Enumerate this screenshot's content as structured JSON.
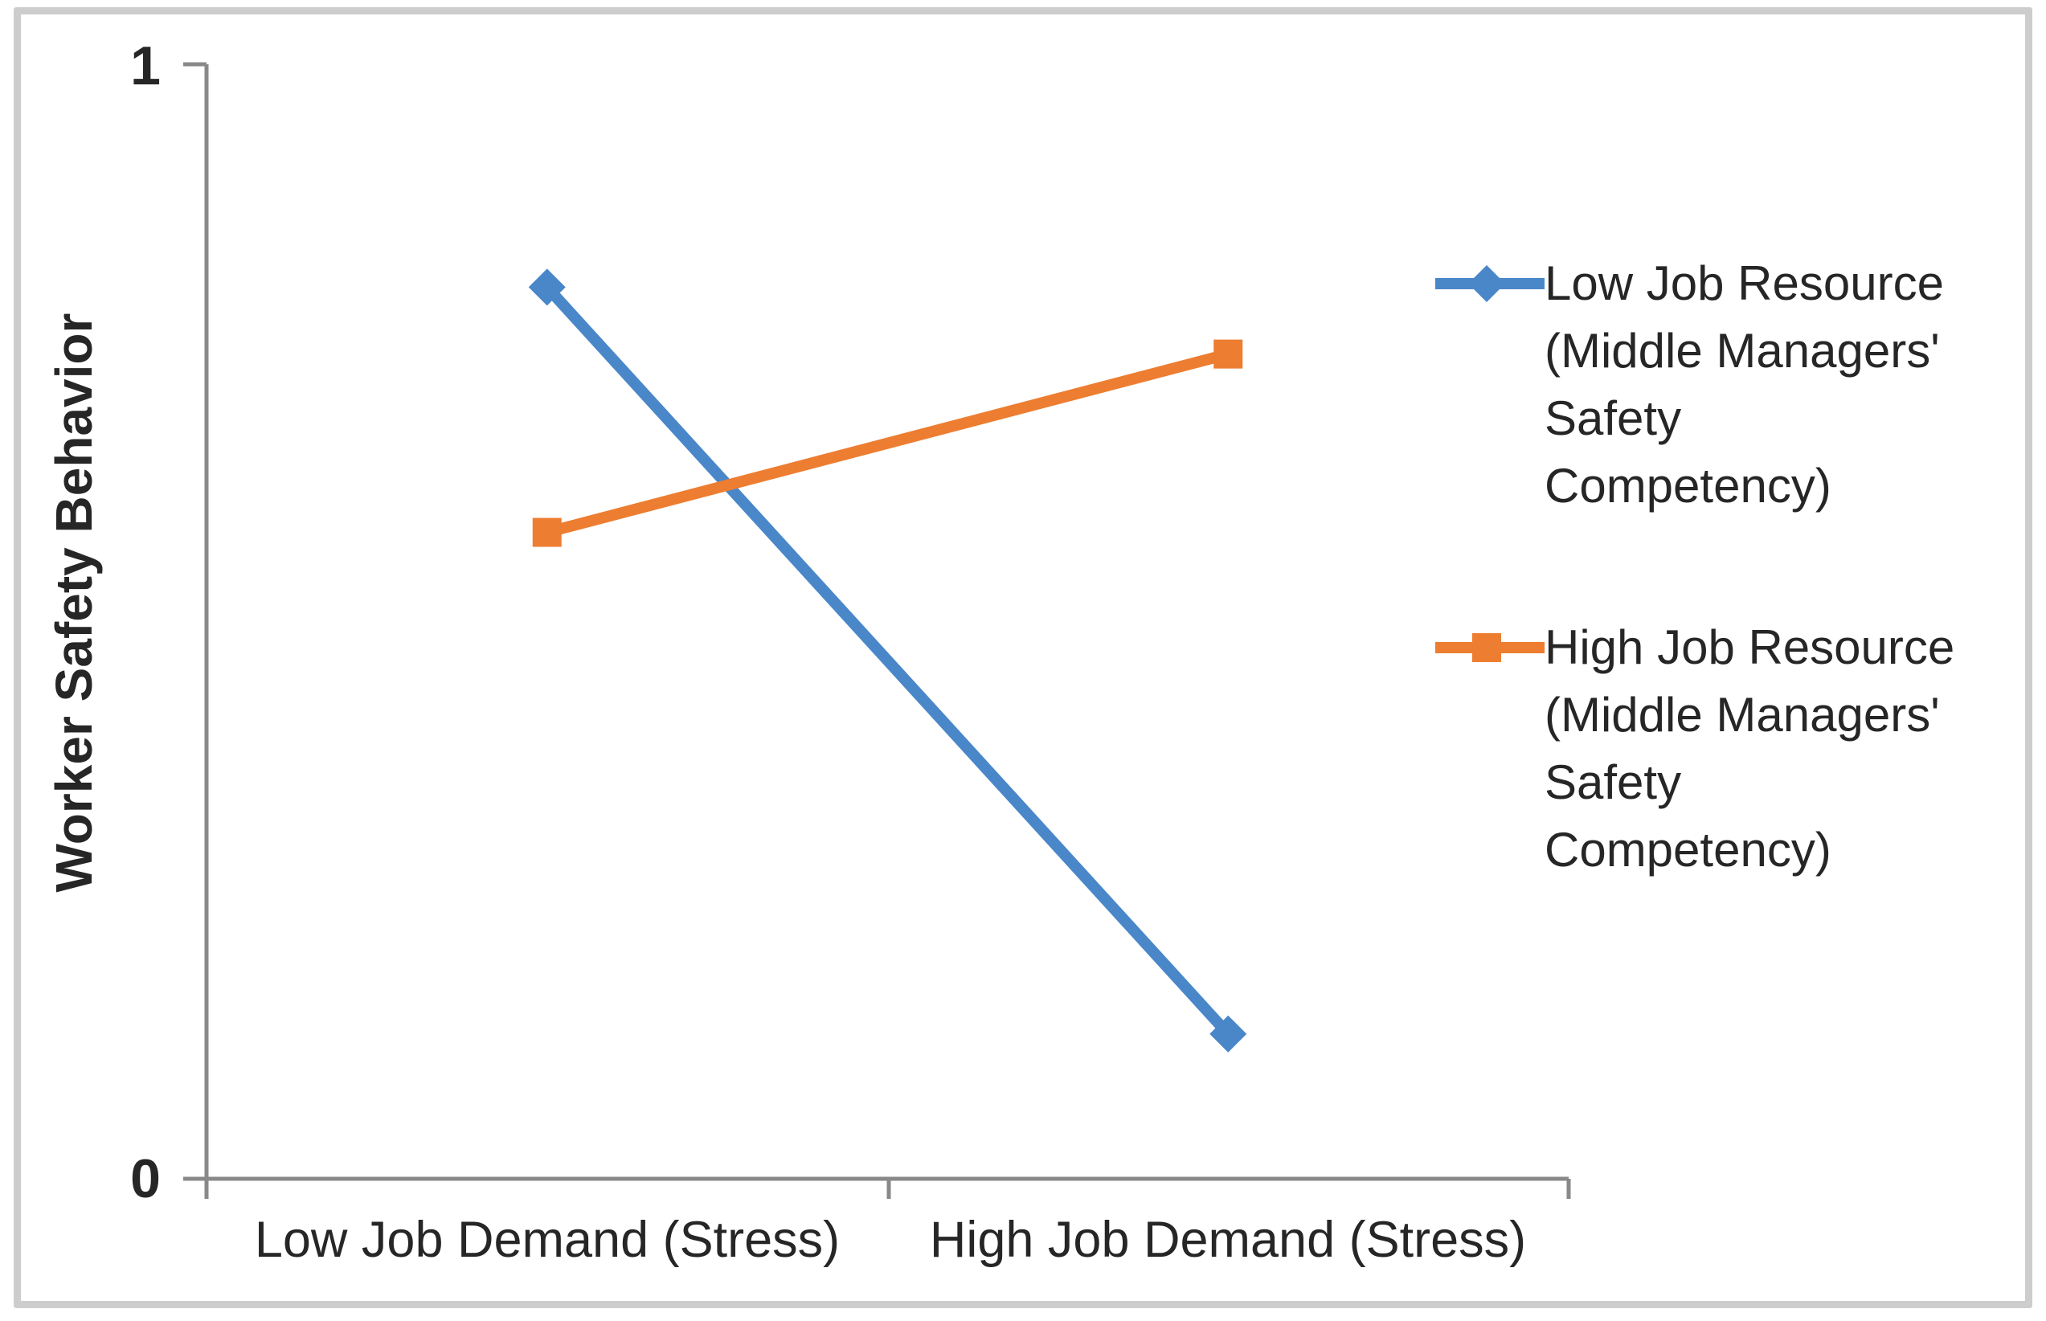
{
  "chart_data": {
    "type": "line",
    "title": "",
    "categories": [
      "Low Job Demand (Stress)",
      "High Job Demand (Stress)"
    ],
    "series": [
      {
        "name": "Low Job Resource (Middle Managers' Safety Competency)",
        "label_multiline": "Low Job Resource\n(Middle Managers'\nSafety\nCompetency)",
        "values": [
          0.8,
          0.13
        ],
        "color": "#4a87c9",
        "marker": "diamond"
      },
      {
        "name": "High Job Resource (Middle Managers' Safety Competency)",
        "label_multiline": "High Job Resource\n(Middle Managers'\nSafety\nCompetency)",
        "values": [
          0.58,
          0.74
        ],
        "color": "#ed7d31",
        "marker": "square"
      }
    ],
    "x_axis": {
      "title": ""
    },
    "y_axis": {
      "title": "Worker Safety Behavior",
      "min": 0,
      "max": 1,
      "tick_labels": [
        "0",
        "1"
      ]
    },
    "legend_position": "right",
    "grid": false,
    "axis_color": "#898989",
    "text_color": "#262626",
    "frame_color": "#cdcdcd"
  }
}
